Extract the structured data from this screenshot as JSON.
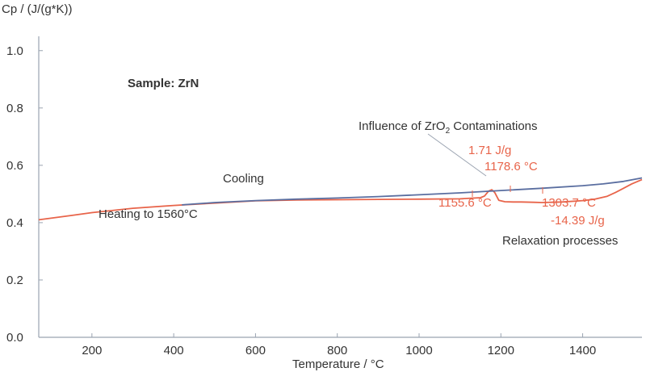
{
  "chart_data": {
    "type": "line",
    "title": "",
    "xlabel": "Temperature / °C",
    "ylabel": "Cp / (J/(g*K))",
    "xlim": [
      70,
      1545
    ],
    "ylim": [
      0,
      1.05
    ],
    "xticks": [
      200,
      400,
      600,
      800,
      1000,
      1200,
      1400
    ],
    "yticks": [
      0.0,
      0.2,
      0.4,
      0.6,
      0.8,
      1.0
    ],
    "grid": false,
    "legend": "none",
    "colors": {
      "heating": "#e8644a",
      "cooling": "#5a6ea0",
      "axis": "#9aa3b0",
      "text": "#333333"
    },
    "series": [
      {
        "name": "Heating to 1560°C",
        "color": "#e8644a",
        "x": [
          70,
          150,
          200,
          300,
          400,
          500,
          600,
          700,
          800,
          900,
          1000,
          1100,
          1150,
          1160,
          1170,
          1178,
          1185,
          1195,
          1210,
          1230,
          1250,
          1280,
          1300,
          1350,
          1400,
          1430,
          1460,
          1480,
          1500,
          1520,
          1545
        ],
        "y": [
          0.41,
          0.425,
          0.435,
          0.45,
          0.46,
          0.468,
          0.476,
          0.479,
          0.48,
          0.481,
          0.482,
          0.483,
          0.487,
          0.493,
          0.51,
          0.515,
          0.505,
          0.478,
          0.473,
          0.472,
          0.472,
          0.471,
          0.47,
          0.472,
          0.477,
          0.482,
          0.492,
          0.505,
          0.52,
          0.535,
          0.55
        ]
      },
      {
        "name": "Cooling",
        "color": "#5a6ea0",
        "x": [
          420,
          500,
          600,
          700,
          800,
          900,
          1000,
          1100,
          1200,
          1300,
          1400,
          1450,
          1500,
          1545
        ],
        "y": [
          0.462,
          0.47,
          0.477,
          0.482,
          0.486,
          0.491,
          0.497,
          0.504,
          0.512,
          0.52,
          0.529,
          0.535,
          0.544,
          0.556
        ]
      }
    ],
    "annotations": {
      "sample": "Sample: ZrN",
      "cooling": "Cooling",
      "heating": "Heating to 1560°C",
      "influence_prefix": "Influence of ZrO",
      "influence_sub": "2",
      "influence_suffix": " Contaminations",
      "peak_area": "1.71 J/g",
      "peak_temp": "1178.6 °C",
      "onset_temp": "1155.6 °C",
      "relax_temp": "1303.7 °C",
      "relax_area": "-14.39 J/g",
      "relax_label": "Relaxation processes"
    }
  }
}
